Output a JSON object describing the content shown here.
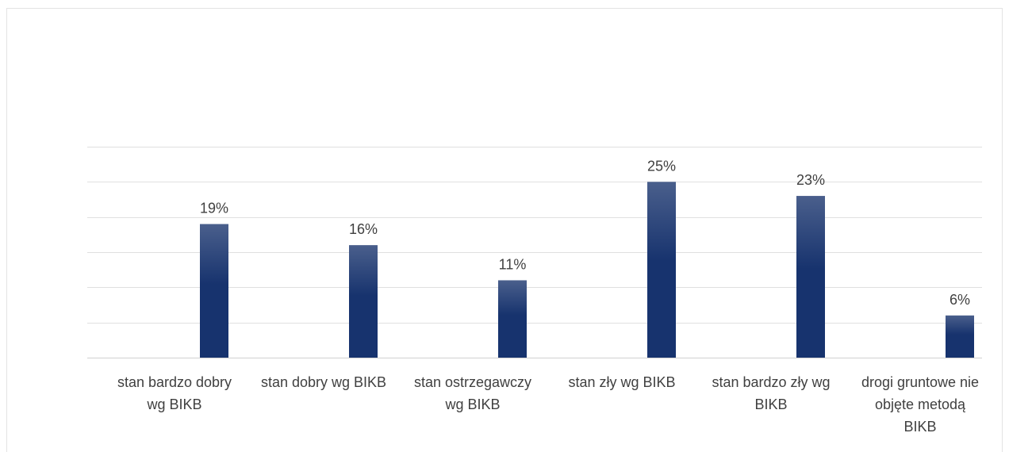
{
  "chart_data": {
    "type": "bar",
    "categories": [
      [
        "stan bardzo dobry",
        "wg BIKB"
      ],
      [
        "stan dobry wg BIKB"
      ],
      [
        "stan ostrzegawczy",
        "wg BIKB"
      ],
      [
        "stan zły wg BIKB"
      ],
      [
        "stan bardzo zły wg",
        "BIKB"
      ],
      [
        "drogi gruntowe nie",
        "objęte metodą",
        "BIKB"
      ]
    ],
    "values": [
      19,
      16,
      11,
      25,
      23,
      6
    ],
    "data_labels": [
      "19%",
      "16%",
      "11%",
      "25%",
      "23%",
      "6%"
    ],
    "ylim": [
      0,
      30
    ],
    "grid": true,
    "bar_color_top": "#4a5f8c",
    "bar_color_bottom": "#17336e",
    "title": "",
    "xlabel": "",
    "ylabel": ""
  }
}
